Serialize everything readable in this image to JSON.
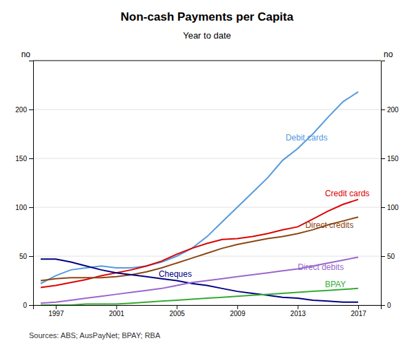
{
  "chart_data": {
    "type": "line",
    "title": "Non-cash Payments per Capita",
    "subtitle": "Year to date",
    "ylabel": "no",
    "y2label": "no",
    "x": [
      1996,
      1997,
      1998,
      1999,
      2000,
      2001,
      2002,
      2003,
      2004,
      2005,
      2006,
      2007,
      2008,
      2009,
      2010,
      2011,
      2012,
      2013,
      2014,
      2015,
      2016,
      2017
    ],
    "xlim": [
      1995.5,
      2018.5
    ],
    "xticks": [
      1997,
      2001,
      2005,
      2009,
      2013,
      2017
    ],
    "ylim": [
      0,
      250
    ],
    "yticks": [
      0,
      50,
      100,
      150,
      200
    ],
    "y2lim": [
      0,
      250
    ],
    "y2ticks": [
      0,
      50,
      100,
      150,
      200
    ],
    "grid": true,
    "series": [
      {
        "color": "#5599dd",
        "values": [
          22,
          30,
          36,
          38,
          40,
          38,
          38,
          40,
          44,
          50,
          58,
          70,
          85,
          100,
          115,
          130,
          148,
          160,
          175,
          192,
          208,
          218
        ]
      },
      {
        "color": "#dd0000",
        "values": [
          18,
          20,
          23,
          26,
          30,
          33,
          36,
          40,
          45,
          52,
          58,
          63,
          67,
          68,
          70,
          73,
          77,
          80,
          88,
          96,
          103,
          108
        ]
      },
      {
        "color": "#8B4513",
        "values": [
          25,
          27,
          28,
          28,
          28,
          29,
          31,
          34,
          38,
          43,
          48,
          53,
          58,
          62,
          65,
          68,
          70,
          73,
          77,
          82,
          86,
          90
        ]
      },
      {
        "color": "#000080",
        "values": [
          47,
          47,
          44,
          40,
          36,
          33,
          31,
          29,
          27,
          25,
          22,
          20,
          17,
          14,
          12,
          10,
          8,
          7,
          5,
          4,
          3,
          3
        ]
      },
      {
        "color": "#9966cc",
        "values": [
          2,
          3,
          5,
          7,
          9,
          11,
          13,
          15,
          17,
          20,
          23,
          25,
          27,
          29,
          31,
          33,
          35,
          37,
          40,
          43,
          46,
          49
        ]
      },
      {
        "color": "#33aa33",
        "values": [
          0,
          0,
          0,
          1,
          1,
          1,
          2,
          3,
          4,
          5,
          6,
          7,
          8,
          9,
          10,
          11,
          12,
          13,
          14,
          15,
          16,
          17
        ]
      }
    ],
    "annotations": [
      {
        "text": "Debit cards",
        "x": 2012.2,
        "y": 168,
        "color": "#5599dd"
      },
      {
        "text": "Credit cards",
        "x": 2014.8,
        "y": 111,
        "color": "#dd0000"
      },
      {
        "text": "Direct credits",
        "x": 2013.5,
        "y": 79,
        "color": "#8B4513"
      },
      {
        "text": "Cheques",
        "x": 2003.8,
        "y": 29,
        "color": "#000080"
      },
      {
        "text": "Direct debits",
        "x": 2013.0,
        "y": 36,
        "color": "#9966cc"
      },
      {
        "text": "BPAY",
        "x": 2014.8,
        "y": 18,
        "color": "#33aa33"
      },
      {
        "text": "Sources: ABS; AusPayNet; BPAY; RBA"
      }
    ]
  }
}
